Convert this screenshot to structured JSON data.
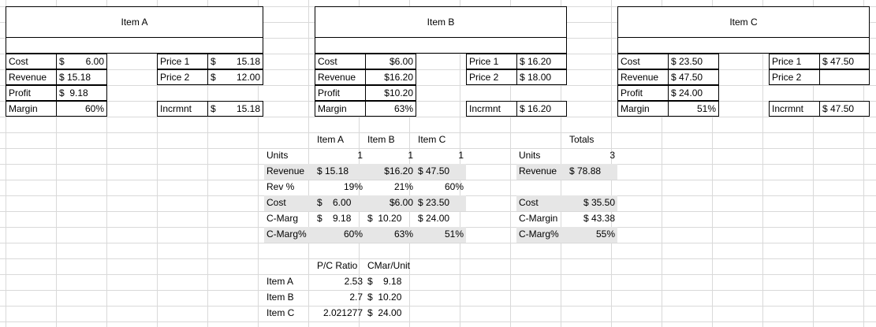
{
  "items": [
    {
      "title": "Item A",
      "cost_label": "Cost",
      "cost": "6.00",
      "cost_sym": "$",
      "revenue_label": "Revenue",
      "revenue": "$ 15.18",
      "profit_label": "Profit",
      "profit": "9.18",
      "profit_sym": "$",
      "margin_label": "Margin",
      "margin": "60%",
      "price1_label": "Price 1",
      "price1_sym": "$",
      "price1": "15.18",
      "price2_label": "Price 2",
      "price2_sym": "$",
      "price2": "12.00",
      "incr_label": "Incrmnt",
      "incr_sym": "$",
      "incr": "15.18"
    },
    {
      "title": "Item B",
      "cost_label": "Cost",
      "cost": "$6.00",
      "revenue_label": "Revenue",
      "revenue": "$16.20",
      "profit_label": "Profit",
      "profit": "$10.20",
      "margin_label": "Margin",
      "margin": "63%",
      "price1_label": "Price 1",
      "price1": "$ 16.20",
      "price2_label": "Price 2",
      "price2": "$ 18.00",
      "incr_label": "Incrmnt",
      "incr": "$ 16.20"
    },
    {
      "title": "Item C",
      "cost_label": "Cost",
      "cost": "$ 23.50",
      "revenue_label": "Revenue",
      "revenue": "$ 47.50",
      "profit_label": "Profit",
      "profit": "$ 24.00",
      "margin_label": "Margin",
      "margin": "51%",
      "price1_label": "Price 1",
      "price1": "$ 47.50",
      "price2_label": "Price 2",
      "price2": "",
      "incr_label": "Incrmnt",
      "incr": "$ 47.50"
    }
  ],
  "summary": {
    "headers": [
      "Item A",
      "Item B",
      "Item C"
    ],
    "totals_header": "Totals",
    "rows": [
      {
        "label": "Units",
        "a": "1",
        "b": "1",
        "c": "1"
      },
      {
        "label": "Revenue",
        "a": "$ 15.18",
        "b": "$16.20",
        "c": "$ 47.50"
      },
      {
        "label": "Rev %",
        "a": "19%",
        "b": "21%",
        "c": "60%"
      },
      {
        "label": "Cost",
        "a": "$    6.00",
        "b": "$6.00",
        "c": "$ 23.50"
      },
      {
        "label": "C-Marg",
        "a": "$    9.18",
        "b": "$  10.20",
        "c": "$ 24.00"
      },
      {
        "label": "C-Marg%",
        "a": "60%",
        "b": "63%",
        "c": "51%"
      }
    ],
    "totals": [
      {
        "label": "Units",
        "value": "3"
      },
      {
        "label": "Revenue",
        "value": "$ 78.88"
      },
      {
        "label": "",
        "value": ""
      },
      {
        "label": "Cost",
        "value": "$ 35.50"
      },
      {
        "label": "C-Margin",
        "value": "$ 43.38"
      },
      {
        "label": "C-Marg%",
        "value": "55%"
      }
    ]
  },
  "ratio": {
    "headers": [
      "P/C Ratio",
      "CMar/Unit"
    ],
    "rows": [
      {
        "label": "Item A",
        "pc": "2.53",
        "cmu": "$    9.18"
      },
      {
        "label": "Item B",
        "pc": "2.7",
        "cmu": "$  10.20"
      },
      {
        "label": "Item C",
        "pc": "2.021277",
        "cmu": "$  24.00"
      }
    ]
  }
}
